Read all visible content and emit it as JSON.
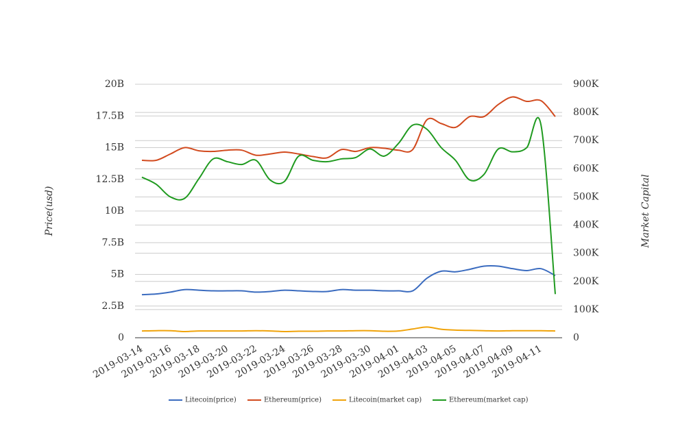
{
  "chart_data": {
    "type": "line",
    "categories": [
      "2019-03-14",
      null,
      "2019-03-16",
      null,
      "2019-03-18",
      null,
      "2019-03-20",
      null,
      "2019-03-22",
      null,
      "2019-03-24",
      null,
      "2019-03-26",
      null,
      "2019-03-28",
      null,
      "2019-03-30",
      null,
      "2019-04-01",
      null,
      "2019-04-03",
      null,
      "2019-04-05",
      null,
      "2019-04-07",
      null,
      "2019-04-09",
      null,
      "2019-04-11",
      null
    ],
    "ylabel": "Price(usd)",
    "y2label": "Market Capital",
    "ylim": [
      0,
      20
    ],
    "yticks": [
      0,
      {
        "value": 2.5,
        "label": "2.5B"
      },
      {
        "value": 5,
        "label": "5B"
      },
      {
        "value": 7.5,
        "label": "7.5B"
      },
      {
        "value": 10,
        "label": "10B"
      },
      {
        "value": 12.5,
        "label": "12.5B"
      },
      {
        "value": 15,
        "label": "15B"
      },
      {
        "value": 17.5,
        "label": "17.5B"
      },
      {
        "value": 20,
        "label": "20B"
      }
    ],
    "y2lim": [
      0,
      900
    ],
    "y2ticks": [
      0,
      {
        "value": 100,
        "label": "100K"
      },
      {
        "value": 200,
        "label": "200K"
      },
      {
        "value": 300,
        "label": "300K"
      },
      {
        "value": 400,
        "label": "400K"
      },
      {
        "value": 500,
        "label": "500K"
      },
      {
        "value": 600,
        "label": "600K"
      },
      {
        "value": 700,
        "label": "700K"
      },
      {
        "value": 800,
        "label": "800K"
      },
      {
        "value": 900,
        "label": "900K"
      }
    ],
    "grid": true,
    "legend": "bottom",
    "series": [
      {
        "name": "Litecoin(price)",
        "color": "#3a6bbf",
        "values": [
          3.4,
          3.45,
          3.6,
          3.8,
          3.75,
          3.7,
          3.7,
          3.7,
          3.6,
          3.65,
          3.75,
          3.7,
          3.65,
          3.65,
          3.8,
          3.75,
          3.75,
          3.7,
          3.7,
          3.7,
          4.7,
          5.25,
          5.2,
          5.4,
          5.65,
          5.65,
          5.45,
          5.3,
          5.45,
          4.9
        ]
      },
      {
        "name": "Ethereum(price)",
        "color": "#d24a1e",
        "values": [
          14.0,
          14.0,
          14.5,
          15.0,
          14.75,
          14.7,
          14.8,
          14.8,
          14.4,
          14.5,
          14.65,
          14.5,
          14.3,
          14.2,
          14.85,
          14.7,
          15.0,
          14.95,
          14.8,
          14.85,
          17.2,
          16.9,
          16.6,
          17.45,
          17.45,
          18.4,
          19.0,
          18.65,
          18.7,
          17.45
        ]
      },
      {
        "name": "Litecoin(market cap)",
        "color": "#f0a30a",
        "axis": "y2",
        "values": [
          24,
          25,
          25,
          22,
          24,
          24,
          24,
          24,
          25,
          24,
          22,
          23,
          23,
          24,
          24,
          25,
          25,
          23,
          24,
          31,
          38,
          30,
          27,
          26,
          25,
          24,
          25,
          25,
          25,
          24
        ]
      },
      {
        "name": "Ethereum(market cap)",
        "color": "#1f9a1f",
        "axis": "y2",
        "values": [
          570,
          545,
          500,
          495,
          565,
          635,
          625,
          615,
          630,
          560,
          555,
          645,
          630,
          625,
          635,
          640,
          670,
          645,
          690,
          755,
          740,
          675,
          630,
          560,
          580,
          670,
          660,
          675,
          755,
          155
        ]
      }
    ]
  }
}
